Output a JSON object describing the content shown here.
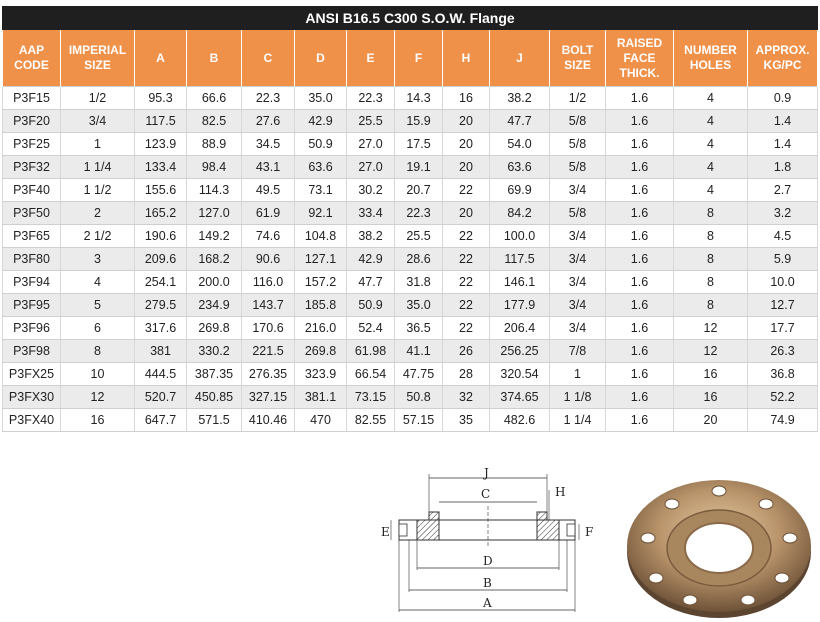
{
  "title": "ANSI B16.5 C300 S.O.W. Flange",
  "columns": [
    [
      "AAP",
      "CODE"
    ],
    [
      "IMPERIAL",
      "SIZE"
    ],
    [
      "A"
    ],
    [
      "B"
    ],
    [
      "C"
    ],
    [
      "D"
    ],
    [
      "E"
    ],
    [
      "F"
    ],
    [
      "H"
    ],
    [
      "J"
    ],
    [
      "BOLT",
      "SIZE"
    ],
    [
      "RAISED",
      "FACE",
      "THICK."
    ],
    [
      "NUMBER",
      "HOLES"
    ],
    [
      "APPROX.",
      "KG/PC"
    ]
  ],
  "rows": [
    [
      "P3F15",
      "1/2",
      "95.3",
      "66.6",
      "22.3",
      "35.0",
      "22.3",
      "14.3",
      "16",
      "38.2",
      "1/2",
      "1.6",
      "4",
      "0.9"
    ],
    [
      "P3F20",
      "3/4",
      "117.5",
      "82.5",
      "27.6",
      "42.9",
      "25.5",
      "15.9",
      "20",
      "47.7",
      "5/8",
      "1.6",
      "4",
      "1.4"
    ],
    [
      "P3F25",
      "1",
      "123.9",
      "88.9",
      "34.5",
      "50.9",
      "27.0",
      "17.5",
      "20",
      "54.0",
      "5/8",
      "1.6",
      "4",
      "1.4"
    ],
    [
      "P3F32",
      "1 1/4",
      "133.4",
      "98.4",
      "43.1",
      "63.6",
      "27.0",
      "19.1",
      "20",
      "63.6",
      "5/8",
      "1.6",
      "4",
      "1.8"
    ],
    [
      "P3F40",
      "1 1/2",
      "155.6",
      "114.3",
      "49.5",
      "73.1",
      "30.2",
      "20.7",
      "22",
      "69.9",
      "3/4",
      "1.6",
      "4",
      "2.7"
    ],
    [
      "P3F50",
      "2",
      "165.2",
      "127.0",
      "61.9",
      "92.1",
      "33.4",
      "22.3",
      "20",
      "84.2",
      "5/8",
      "1.6",
      "8",
      "3.2"
    ],
    [
      "P3F65",
      "2 1/2",
      "190.6",
      "149.2",
      "74.6",
      "104.8",
      "38.2",
      "25.5",
      "22",
      "100.0",
      "3/4",
      "1.6",
      "8",
      "4.5"
    ],
    [
      "P3F80",
      "3",
      "209.6",
      "168.2",
      "90.6",
      "127.1",
      "42.9",
      "28.6",
      "22",
      "117.5",
      "3/4",
      "1.6",
      "8",
      "5.9"
    ],
    [
      "P3F94",
      "4",
      "254.1",
      "200.0",
      "116.0",
      "157.2",
      "47.7",
      "31.8",
      "22",
      "146.1",
      "3/4",
      "1.6",
      "8",
      "10.0"
    ],
    [
      "P3F95",
      "5",
      "279.5",
      "234.9",
      "143.7",
      "185.8",
      "50.9",
      "35.0",
      "22",
      "177.9",
      "3/4",
      "1.6",
      "8",
      "12.7"
    ],
    [
      "P3F96",
      "6",
      "317.6",
      "269.8",
      "170.6",
      "216.0",
      "52.4",
      "36.5",
      "22",
      "206.4",
      "3/4",
      "1.6",
      "12",
      "17.7"
    ],
    [
      "P3F98",
      "8",
      "381",
      "330.2",
      "221.5",
      "269.8",
      "61.98",
      "41.1",
      "26",
      "256.25",
      "7/8",
      "1.6",
      "12",
      "26.3"
    ],
    [
      "P3FX25",
      "10",
      "444.5",
      "387.35",
      "276.35",
      "323.9",
      "66.54",
      "47.75",
      "28",
      "320.54",
      "1",
      "1.6",
      "16",
      "36.8"
    ],
    [
      "P3FX30",
      "12",
      "520.7",
      "450.85",
      "327.15",
      "381.1",
      "73.15",
      "50.8",
      "32",
      "374.65",
      "1 1/8",
      "1.6",
      "16",
      "52.2"
    ],
    [
      "P3FX40",
      "16",
      "647.7",
      "571.5",
      "410.46",
      "470",
      "82.55",
      "57.15",
      "35",
      "482.6",
      "1 1/4",
      "1.6",
      "20",
      "74.9"
    ]
  ],
  "diagram": {
    "labels": {
      "J": "J",
      "C": "C",
      "H": "H",
      "E": "E",
      "F": "F",
      "D": "D",
      "B": "B",
      "A": "A"
    }
  },
  "colors": {
    "title_bg": "#1f1f1f",
    "header_bg": "#f0914a",
    "row_alt": "#ebebeb"
  }
}
